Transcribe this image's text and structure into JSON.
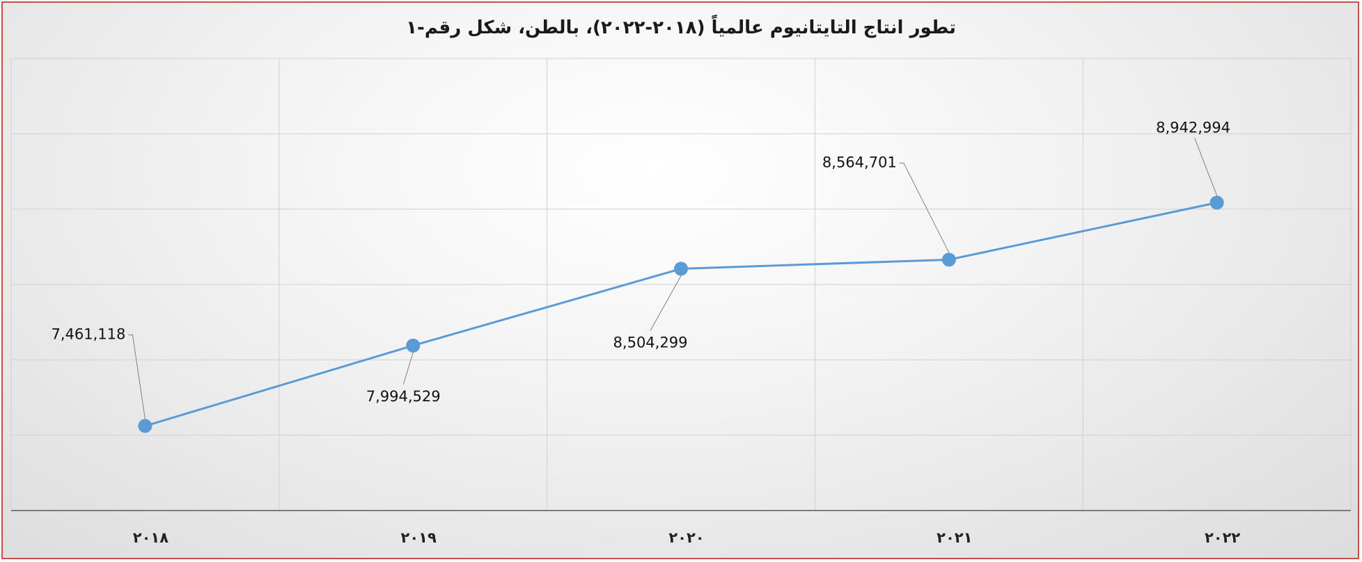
{
  "chart_data": {
    "type": "line",
    "title": "تطور انتاج التايتانيوم عالمياً (٢٠١٨-٢٠٢٢)، بالطن، شكل رقم-١",
    "categories": [
      "٢٠١٨",
      "٢٠١٩",
      "٢٠٢٠",
      "٢٠٢١",
      "٢٠٢٢"
    ],
    "values": [
      7461118,
      7994529,
      8504299,
      8564701,
      8942994
    ],
    "data_labels": [
      "7,461,118",
      "7,994,529",
      "8,504,299",
      "8,564,701",
      "8,942,994"
    ],
    "ylim": [
      6900000,
      9900000
    ],
    "grid": true,
    "legend": "none",
    "colors": {
      "line": "#5b9bd5",
      "marker": "#5b9bd5",
      "grid": "#d0d0d0",
      "axis": "#595959",
      "frame": "#c0504d",
      "leader": "#7f7f7f"
    }
  }
}
